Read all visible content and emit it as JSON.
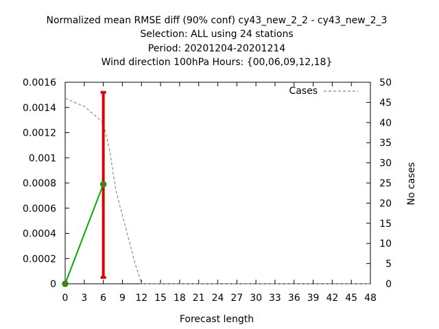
{
  "chart_data": {
    "type": "line",
    "title_lines": [
      "Normalized mean RMSE diff (90% conf) cy43_new_2_2 - cy43_new_2_3",
      "Selection: ALL using    24 stations",
      "Period: 20201204-20201214",
      "Wind direction 100hPa   Hours: {00,06,09,12,18}"
    ],
    "xlabel": "Forecast length",
    "ylabel_left": "",
    "ylabel_right": "No cases",
    "x_ticks": [
      "0",
      "3",
      "6",
      "9",
      "12",
      "15",
      "18",
      "21",
      "24",
      "27",
      "30",
      "33",
      "36",
      "39",
      "42",
      "45",
      "48"
    ],
    "y_ticks_left": [
      "0",
      "0.0002",
      "0.0004",
      "0.0006",
      "0.0008",
      "0.001",
      "0.0012",
      "0.0014",
      "0.0016"
    ],
    "y_ticks_right": [
      "0",
      "5",
      "10",
      "15",
      "20",
      "25",
      "30",
      "35",
      "40",
      "45",
      "50"
    ],
    "xlim": [
      0,
      48
    ],
    "ylim_left": [
      0,
      0.0016
    ],
    "ylim_right": [
      0,
      50
    ],
    "grid": false,
    "legend": {
      "position": "top-right",
      "entries": [
        "Cases"
      ]
    },
    "series": [
      {
        "name": "",
        "axis": "left",
        "color": "#00aa00",
        "x": [
          0,
          6
        ],
        "y": [
          0,
          0.00079
        ]
      },
      {
        "name": "Cases",
        "axis": "right",
        "color": "#888888",
        "style": "dashed",
        "x": [
          0,
          3,
          6,
          7,
          8,
          9,
          10,
          11,
          12,
          15,
          18,
          21,
          24,
          27,
          30,
          33,
          36,
          39,
          42,
          45,
          48
        ],
        "y": [
          46,
          44,
          40,
          33,
          23,
          17,
          11,
          5,
          0,
          0,
          0,
          0,
          0,
          0,
          0,
          0,
          0,
          0,
          0,
          0,
          0
        ]
      }
    ],
    "error_bars": [
      {
        "x": 6,
        "low": 5e-05,
        "high": 0.00152,
        "color": "#dd0000"
      }
    ],
    "colors": {
      "diff_line": "#00aa00",
      "error_bar": "#dd0000",
      "marker": "#8b5a2b",
      "cases": "#888888"
    }
  }
}
